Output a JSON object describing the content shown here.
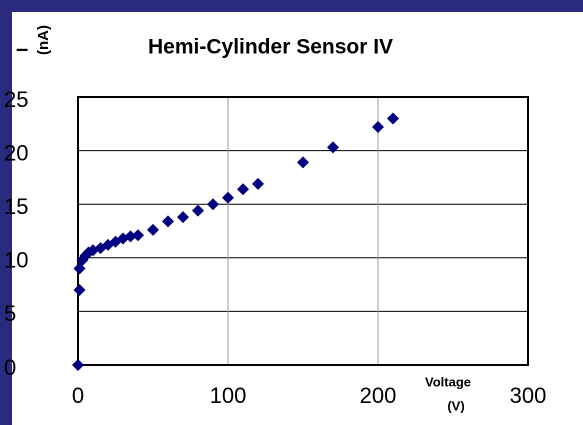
{
  "chart_data": {
    "type": "scatter",
    "title": "Hemi-Cylinder Sensor IV",
    "ylabel": "(nA)",
    "annotation": "–",
    "xlabel": [
      "Voltage",
      "(V)"
    ],
    "x": [
      0,
      1,
      1,
      3,
      5,
      7,
      10,
      15,
      20,
      25,
      30,
      35,
      40,
      50,
      60,
      70,
      80,
      90,
      100,
      110,
      120,
      150,
      170,
      200,
      210
    ],
    "values": [
      0,
      7,
      9,
      9.8,
      10.2,
      10.5,
      10.7,
      10.9,
      11.2,
      11.5,
      11.8,
      12,
      12.1,
      12.6,
      13.4,
      13.8,
      14.4,
      15,
      15.6,
      16.4,
      16.9,
      18.9,
      20.3,
      22.2,
      23
    ],
    "color": "#000080",
    "xlim": [
      0,
      300
    ],
    "xticks": [
      0,
      100,
      200,
      300
    ],
    "ylim": [
      0,
      25
    ],
    "yticks": [
      0,
      5,
      10,
      15,
      20,
      25
    ],
    "grid": true
  }
}
